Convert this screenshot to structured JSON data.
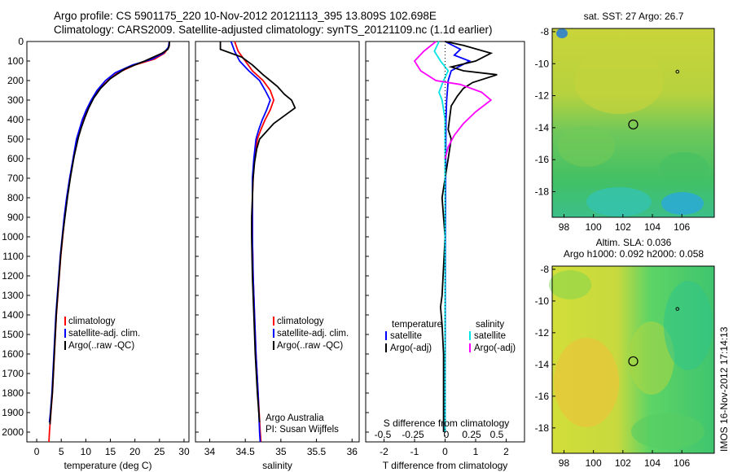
{
  "header": {
    "line1": "Argo profile: CS 5901175_220 10-Nov-2012 20121113_395 13.809S 102.698E",
    "line2": "Climatology: CARS2009. Satellite-adjusted climatology: synTS_20121109.nc (1.1d earlier)"
  },
  "colors": {
    "climatology": "#ff0000",
    "satellite": "#0000ff",
    "argo": "#000000",
    "sat_salinity": "#00e5e5",
    "argo_salinity_adj": "#ff00ff"
  },
  "chart_data": [
    {
      "type": "line",
      "name": "temperature-profile",
      "xlabel": "temperature (deg C)",
      "ylabel": "",
      "xlim": [
        -2,
        31
      ],
      "ylim": [
        0,
        2050
      ],
      "xticks": [
        0,
        5,
        10,
        15,
        20,
        25,
        30
      ],
      "yticks": [
        0,
        100,
        200,
        300,
        400,
        500,
        600,
        700,
        800,
        900,
        1000,
        1100,
        1200,
        1300,
        1400,
        1500,
        1600,
        1700,
        1800,
        1900,
        2000
      ],
      "legend": [
        "climatology",
        "satellite-adj. clim.",
        "Argo(..raw -QC)"
      ],
      "series": [
        {
          "name": "climatology",
          "points": [
            [
              27,
              0
            ],
            [
              26.9,
              30
            ],
            [
              26,
              60
            ],
            [
              24,
              90
            ],
            [
              20,
              120
            ],
            [
              16.5,
              160
            ],
            [
              14.5,
              200
            ],
            [
              12.5,
              250
            ],
            [
              11.3,
              300
            ],
            [
              10.3,
              350
            ],
            [
              9.5,
              400
            ],
            [
              8.9,
              450
            ],
            [
              8.3,
              500
            ],
            [
              7.5,
              600
            ],
            [
              6.8,
              700
            ],
            [
              6.2,
              800
            ],
            [
              5.7,
              900
            ],
            [
              5.3,
              1000
            ],
            [
              4.9,
              1100
            ],
            [
              4.6,
              1200
            ],
            [
              4.3,
              1300
            ],
            [
              4.0,
              1400
            ],
            [
              3.8,
              1500
            ],
            [
              3.6,
              1600
            ],
            [
              3.4,
              1700
            ],
            [
              3.2,
              1800
            ],
            [
              2.9,
              1900
            ],
            [
              2.6,
              2000
            ],
            [
              2.5,
              2050
            ]
          ]
        },
        {
          "name": "satellite-adj. clim.",
          "points": [
            [
              27,
              0
            ],
            [
              26.8,
              30
            ],
            [
              25.8,
              60
            ],
            [
              23.5,
              90
            ],
            [
              19.5,
              120
            ],
            [
              16,
              160
            ],
            [
              14,
              200
            ],
            [
              12.3,
              250
            ],
            [
              11.1,
              300
            ],
            [
              10.1,
              350
            ],
            [
              9.3,
              400
            ],
            [
              8.7,
              450
            ],
            [
              8.1,
              500
            ],
            [
              7.4,
              600
            ],
            [
              6.7,
              700
            ],
            [
              6.1,
              800
            ],
            [
              5.6,
              900
            ],
            [
              5.2,
              1000
            ],
            [
              4.8,
              1100
            ],
            [
              4.5,
              1200
            ],
            [
              4.2,
              1300
            ],
            [
              3.9,
              1400
            ],
            [
              3.7,
              1500
            ],
            [
              3.5,
              1600
            ],
            [
              3.3,
              1700
            ],
            [
              3.1,
              1800
            ],
            [
              2.8,
              1900
            ],
            [
              2.6,
              1950
            ]
          ]
        },
        {
          "name": "Argo(..raw -QC)",
          "points": [
            [
              27,
              0
            ],
            [
              27,
              20
            ],
            [
              26.7,
              40
            ],
            [
              25.5,
              60
            ],
            [
              22,
              100
            ],
            [
              18,
              140
            ],
            [
              15,
              190
            ],
            [
              13,
              240
            ],
            [
              11.6,
              290
            ],
            [
              10.6,
              340
            ],
            [
              9.8,
              390
            ],
            [
              9.1,
              440
            ],
            [
              8.5,
              490
            ],
            [
              7.6,
              590
            ],
            [
              6.9,
              690
            ],
            [
              6.3,
              790
            ],
            [
              5.8,
              890
            ],
            [
              5.3,
              990
            ],
            [
              4.9,
              1090
            ],
            [
              4.6,
              1190
            ],
            [
              4.3,
              1290
            ],
            [
              4.0,
              1390
            ],
            [
              3.8,
              1490
            ],
            [
              3.6,
              1590
            ],
            [
              3.4,
              1690
            ],
            [
              3.2,
              1790
            ],
            [
              2.9,
              1890
            ],
            [
              2.7,
              1960
            ]
          ]
        }
      ]
    },
    {
      "type": "line",
      "name": "salinity-profile",
      "xlabel": "salinity",
      "xlim": [
        33.8,
        36.1
      ],
      "ylim": [
        0,
        2050
      ],
      "xticks": [
        34,
        34.5,
        35,
        35.5,
        36
      ],
      "legend": [
        "climatology",
        "satellite-adj. clim.",
        "Argo(..raw -QC)"
      ],
      "annotation": [
        "Argo Australia",
        "PI: Susan Wijffels"
      ],
      "series": [
        {
          "name": "climatology",
          "points": [
            [
              34.35,
              0
            ],
            [
              34.4,
              50
            ],
            [
              34.5,
              100
            ],
            [
              34.6,
              150
            ],
            [
              34.75,
              200
            ],
            [
              34.85,
              250
            ],
            [
              34.9,
              300
            ],
            [
              34.85,
              350
            ],
            [
              34.78,
              400
            ],
            [
              34.72,
              450
            ],
            [
              34.67,
              500
            ],
            [
              34.63,
              600
            ],
            [
              34.61,
              700
            ],
            [
              34.6,
              800
            ],
            [
              34.6,
              900
            ],
            [
              34.6,
              1000
            ],
            [
              34.61,
              1200
            ],
            [
              34.63,
              1400
            ],
            [
              34.65,
              1600
            ],
            [
              34.68,
              1800
            ],
            [
              34.71,
              2000
            ],
            [
              34.72,
              2050
            ]
          ]
        },
        {
          "name": "satellite-adj. clim.",
          "points": [
            [
              34.3,
              0
            ],
            [
              34.35,
              50
            ],
            [
              34.42,
              100
            ],
            [
              34.55,
              150
            ],
            [
              34.7,
              200
            ],
            [
              34.78,
              250
            ],
            [
              34.85,
              300
            ],
            [
              34.8,
              350
            ],
            [
              34.74,
              400
            ],
            [
              34.69,
              450
            ],
            [
              34.65,
              500
            ],
            [
              34.62,
              600
            ],
            [
              34.6,
              700
            ],
            [
              34.6,
              800
            ],
            [
              34.6,
              900
            ],
            [
              34.6,
              1000
            ],
            [
              34.61,
              1200
            ],
            [
              34.63,
              1400
            ],
            [
              34.65,
              1600
            ],
            [
              34.68,
              1800
            ],
            [
              34.7,
              2000
            ],
            [
              34.71,
              2050
            ]
          ]
        },
        {
          "name": "Argo(..raw -QC)",
          "points": [
            [
              34.15,
              0
            ],
            [
              34.15,
              40
            ],
            [
              34.3,
              60
            ],
            [
              34.45,
              80
            ],
            [
              34.6,
              120
            ],
            [
              34.75,
              170
            ],
            [
              34.85,
              200
            ],
            [
              34.95,
              230
            ],
            [
              35.05,
              270
            ],
            [
              35.15,
              300
            ],
            [
              35.2,
              340
            ],
            [
              35.05,
              380
            ],
            [
              34.9,
              420
            ],
            [
              34.8,
              460
            ],
            [
              34.7,
              500
            ],
            [
              34.66,
              550
            ],
            [
              34.63,
              620
            ],
            [
              34.61,
              700
            ],
            [
              34.6,
              800
            ],
            [
              34.59,
              900
            ],
            [
              34.59,
              1000
            ],
            [
              34.6,
              1200
            ],
            [
              34.62,
              1400
            ],
            [
              34.64,
              1600
            ],
            [
              34.67,
              1800
            ],
            [
              34.7,
              1950
            ]
          ]
        }
      ]
    },
    {
      "type": "line",
      "name": "difference-profile",
      "xlabel": "T difference from climatology",
      "top_xlabel": "S difference from climatology",
      "xlim": [
        -2.6,
        2.6
      ],
      "ylim": [
        0,
        2050
      ],
      "xticks": [
        -2,
        -1,
        0,
        1,
        2
      ],
      "top_xticks": [
        "-0.5",
        "-0.25",
        "0",
        "0.25",
        "0.5"
      ],
      "legend_left_title": "temperature",
      "legend_right_title": "salinity",
      "legend": [
        "satellite",
        "Argo(-adj)",
        "satellite",
        "Argo(-adj)"
      ],
      "series": [
        {
          "name": "temperature satellite",
          "points": [
            [
              0,
              0
            ],
            [
              0.5,
              40
            ],
            [
              0.3,
              70
            ],
            [
              0.8,
              100
            ],
            [
              0.2,
              150
            ],
            [
              0.1,
              200
            ],
            [
              0.05,
              300
            ],
            [
              0.03,
              400
            ],
            [
              0.02,
              600
            ],
            [
              0.01,
              1000
            ],
            [
              0,
              2000
            ]
          ]
        },
        {
          "name": "temperature Argo(-adj)",
          "points": [
            [
              0,
              0
            ],
            [
              0.6,
              20
            ],
            [
              1.5,
              60
            ],
            [
              1.0,
              100
            ],
            [
              0.2,
              130
            ],
            [
              0.6,
              150
            ],
            [
              1.7,
              170
            ],
            [
              0.9,
              210
            ],
            [
              0.6,
              240
            ],
            [
              0.4,
              280
            ],
            [
              0.2,
              330
            ],
            [
              0.1,
              450
            ],
            [
              0.2,
              500
            ],
            [
              0.1,
              600
            ],
            [
              0,
              700
            ],
            [
              -0.1,
              800
            ],
            [
              -0.05,
              900
            ],
            [
              0,
              1000
            ],
            [
              -0.1,
              1300
            ],
            [
              -0.15,
              1360
            ],
            [
              -0.1,
              1450
            ],
            [
              -0.05,
              1600
            ],
            [
              -0.05,
              2000
            ]
          ]
        },
        {
          "name": "salinity satellite",
          "points": [
            [
              -0.2,
              0
            ],
            [
              -0.35,
              50
            ],
            [
              -0.15,
              100
            ],
            [
              0.1,
              150
            ],
            [
              -0.05,
              200
            ],
            [
              -0.2,
              260
            ],
            [
              -0.1,
              300
            ],
            [
              0,
              400
            ],
            [
              0,
              600
            ],
            [
              0,
              1000
            ],
            [
              0,
              2000
            ]
          ]
        },
        {
          "name": "salinity Argo(-adj)",
          "points": [
            [
              -0.3,
              0
            ],
            [
              -0.7,
              50
            ],
            [
              -1.0,
              100
            ],
            [
              -0.8,
              150
            ],
            [
              -0.3,
              200
            ],
            [
              0.5,
              220
            ],
            [
              1.2,
              260
            ],
            [
              1.5,
              300
            ],
            [
              1.0,
              360
            ],
            [
              0.6,
              420
            ],
            [
              0.3,
              480
            ],
            [
              0.1,
              540
            ],
            [
              0,
              600
            ]
          ]
        }
      ]
    },
    {
      "type": "heatmap",
      "name": "sst-map",
      "title": "sat. SST: 27 Argo: 26.7",
      "xlim": [
        97.2,
        108.2
      ],
      "ylim": [
        -19.6,
        -7.8
      ],
      "xticks": [
        98,
        100,
        102,
        104,
        106
      ],
      "yticks": [
        -8,
        -10,
        -12,
        -14,
        -16,
        -18
      ],
      "argo_position": [
        102.7,
        -13.8
      ],
      "other_float": [
        105.7,
        -10.5
      ]
    },
    {
      "type": "heatmap",
      "name": "sla-map",
      "title": [
        "Altim. SLA: 0.036",
        "Argo h1000: 0.092 h2000: 0.058"
      ],
      "xlim": [
        97.2,
        108.2
      ],
      "ylim": [
        -19.6,
        -7.8
      ],
      "xticks": [
        98,
        100,
        102,
        104,
        106
      ],
      "yticks": [
        -8,
        -10,
        -12,
        -14,
        -16,
        -18
      ],
      "argo_position": [
        102.7,
        -13.8
      ],
      "other_float": [
        105.7,
        -10.5
      ]
    }
  ],
  "side_label": "IMOS 16-Nov-2012 17:14:13"
}
